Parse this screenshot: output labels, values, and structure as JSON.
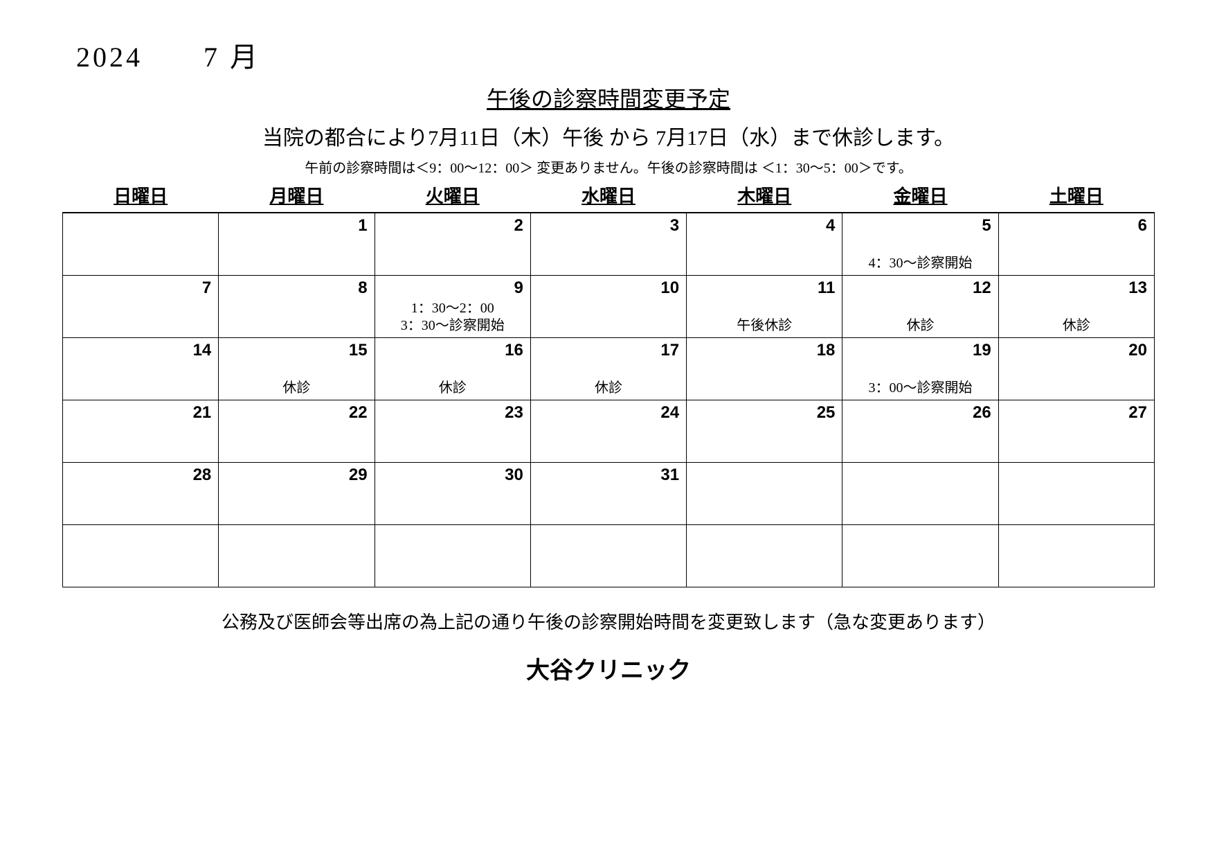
{
  "header": {
    "year_month": "2024　　7 月",
    "title": "午後の診察時間変更予定",
    "subtitle": "当院の都合により7月11日（木）午後 から 7月17日（水）まで休診します。",
    "note": "午前の診察時間は＜9：00～12：00＞ 変更ありません。午後の診察時間は ＜1：30～5：00＞です。"
  },
  "calendar": {
    "days_of_week": [
      "日曜日",
      "月曜日",
      "火曜日",
      "水曜日",
      "木曜日",
      "金曜日",
      "土曜日"
    ],
    "weeks": [
      [
        {
          "num": "",
          "note": ""
        },
        {
          "num": "1",
          "note": ""
        },
        {
          "num": "2",
          "note": ""
        },
        {
          "num": "3",
          "note": ""
        },
        {
          "num": "4",
          "note": ""
        },
        {
          "num": "5",
          "note": "4：30～診察開始"
        },
        {
          "num": "6",
          "note": ""
        }
      ],
      [
        {
          "num": "7",
          "note": ""
        },
        {
          "num": "8",
          "note": ""
        },
        {
          "num": "9",
          "note": "1：30～2：00\n3：30～診察開始"
        },
        {
          "num": "10",
          "note": ""
        },
        {
          "num": "11",
          "note": "午後休診"
        },
        {
          "num": "12",
          "note": "休診"
        },
        {
          "num": "13",
          "note": "休診"
        }
      ],
      [
        {
          "num": "14",
          "note": ""
        },
        {
          "num": "15",
          "note": "休診"
        },
        {
          "num": "16",
          "note": "休診"
        },
        {
          "num": "17",
          "note": "休診"
        },
        {
          "num": "18",
          "note": ""
        },
        {
          "num": "19",
          "note": "3：00～診察開始"
        },
        {
          "num": "20",
          "note": ""
        }
      ],
      [
        {
          "num": "21",
          "note": ""
        },
        {
          "num": "22",
          "note": ""
        },
        {
          "num": "23",
          "note": ""
        },
        {
          "num": "24",
          "note": ""
        },
        {
          "num": "25",
          "note": ""
        },
        {
          "num": "26",
          "note": ""
        },
        {
          "num": "27",
          "note": ""
        }
      ],
      [
        {
          "num": "28",
          "note": ""
        },
        {
          "num": "29",
          "note": ""
        },
        {
          "num": "30",
          "note": ""
        },
        {
          "num": "31",
          "note": ""
        },
        {
          "num": "",
          "note": ""
        },
        {
          "num": "",
          "note": ""
        },
        {
          "num": "",
          "note": ""
        }
      ],
      [
        {
          "num": "",
          "note": ""
        },
        {
          "num": "",
          "note": ""
        },
        {
          "num": "",
          "note": ""
        },
        {
          "num": "",
          "note": ""
        },
        {
          "num": "",
          "note": ""
        },
        {
          "num": "",
          "note": ""
        },
        {
          "num": "",
          "note": ""
        }
      ]
    ]
  },
  "footer": {
    "note": "公務及び医師会等出席の為上記の通り午後の診察開始時間を変更致します（急な変更あります）",
    "clinic": "大谷クリニック"
  },
  "style": {
    "border_color": "#000000",
    "background": "#ffffff",
    "daynum_font": "Arial",
    "body_font": "Mincho"
  }
}
